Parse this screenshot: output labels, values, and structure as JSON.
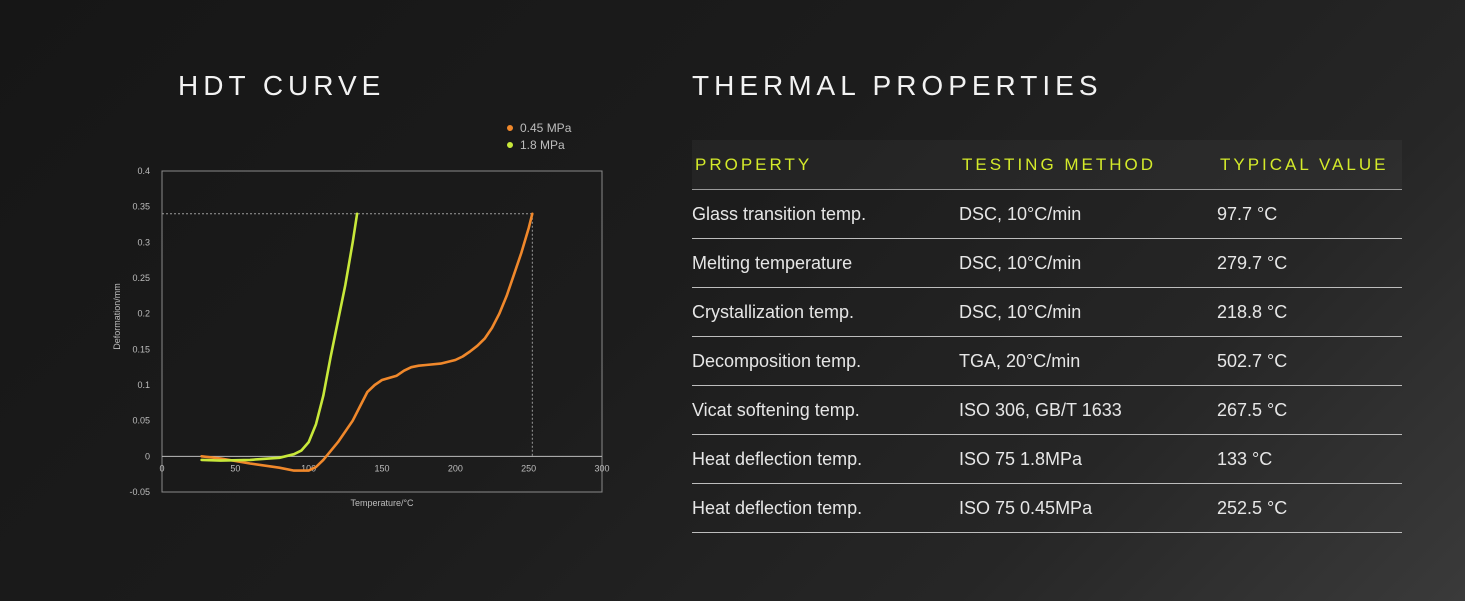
{
  "left": {
    "title": "HDT CURVE"
  },
  "right": {
    "title": "THERMAL PROPERTIES"
  },
  "colors": {
    "accent": "#d4ea2a",
    "series_045": "#f0882b",
    "series_18": "#c8e83a"
  },
  "chart_data": {
    "type": "line",
    "xlabel": "Temperature/°C",
    "ylabel": "Deformation/mm",
    "xlim": [
      0,
      300
    ],
    "ylim": [
      -0.05,
      0.4
    ],
    "xticks": [
      0,
      50,
      100,
      150,
      200,
      250,
      300
    ],
    "yticks": [
      0.4,
      0.35,
      0.3,
      0.25,
      0.2,
      0.15,
      0.1,
      0.05,
      0,
      -0.05
    ],
    "xtick_labels": [
      "0",
      "50",
      "100",
      "150",
      "200",
      "250",
      "300"
    ],
    "ytick_labels": [
      "0.4",
      "0.35",
      "0.3",
      "0.25",
      "0.2",
      "0.15",
      "0.1",
      "0.05",
      "0",
      "-0.05"
    ],
    "legend_position": "top-right",
    "grid": false,
    "reference_lines": {
      "y": 0.34,
      "x": 252.5
    },
    "series": [
      {
        "name": "0.45 MPa",
        "color": "#f0882b",
        "x": [
          27,
          40,
          60,
          80,
          90,
          100,
          105,
          110,
          120,
          130,
          135,
          140,
          145,
          150,
          155,
          160,
          165,
          170,
          175,
          180,
          190,
          200,
          205,
          210,
          215,
          220,
          225,
          230,
          235,
          240,
          245,
          250,
          252.5
        ],
        "y": [
          0,
          -0.003,
          -0.01,
          -0.016,
          -0.02,
          -0.02,
          -0.015,
          -0.005,
          0.02,
          0.05,
          0.07,
          0.09,
          0.1,
          0.107,
          0.11,
          0.113,
          0.12,
          0.125,
          0.127,
          0.128,
          0.13,
          0.135,
          0.14,
          0.147,
          0.155,
          0.165,
          0.18,
          0.2,
          0.225,
          0.255,
          0.285,
          0.32,
          0.34
        ]
      },
      {
        "name": "1.8 MPa",
        "color": "#c8e83a",
        "x": [
          27,
          40,
          60,
          80,
          90,
          95,
          100,
          105,
          110,
          115,
          120,
          125,
          130,
          133
        ],
        "y": [
          -0.005,
          -0.006,
          -0.005,
          -0.002,
          0.003,
          0.008,
          0.02,
          0.045,
          0.085,
          0.14,
          0.19,
          0.24,
          0.3,
          0.34
        ]
      }
    ]
  },
  "table": {
    "headers": [
      "PROPERTY",
      "TESTING METHOD",
      "TYPICAL VALUE"
    ],
    "rows": [
      [
        "Glass transition temp.",
        "DSC, 10°C/min",
        "97.7 °C"
      ],
      [
        "Melting temperature",
        "DSC, 10°C/min",
        "279.7 °C"
      ],
      [
        "Crystallization temp.",
        "DSC, 10°C/min",
        "218.8 °C"
      ],
      [
        "Decomposition temp.",
        "TGA, 20°C/min",
        "502.7 °C"
      ],
      [
        "Vicat softening temp.",
        "ISO 306, GB/T 1633",
        "267.5 °C"
      ],
      [
        "Heat deflection temp.",
        "ISO 75 1.8MPa",
        "133 °C"
      ],
      [
        "Heat deflection temp.",
        "ISO 75 0.45MPa",
        "252.5 °C"
      ]
    ]
  }
}
